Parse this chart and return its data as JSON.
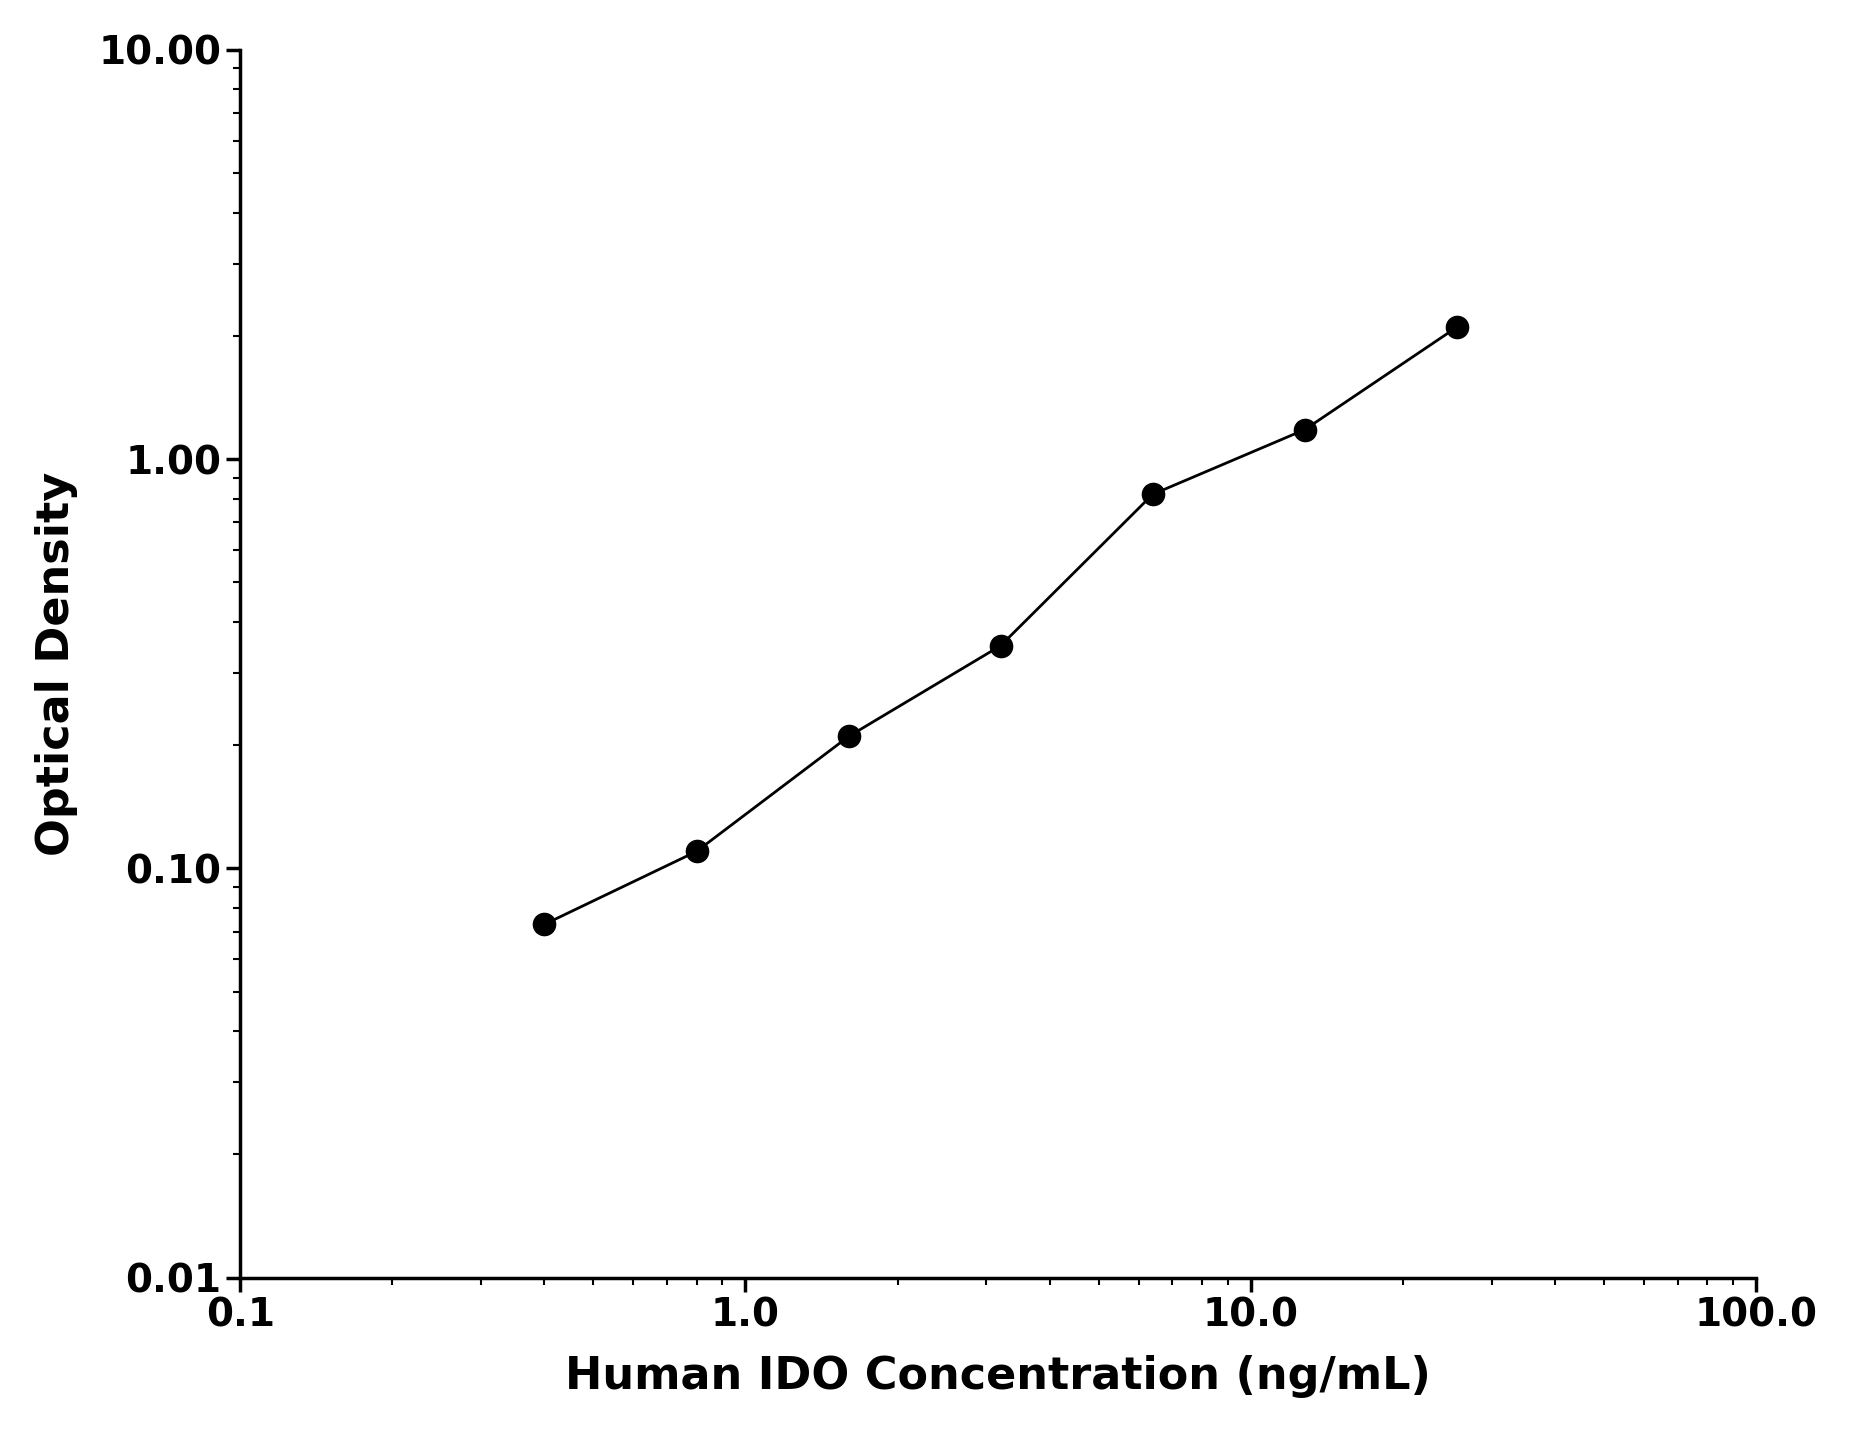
{
  "x": [
    0.4,
    0.8,
    1.6,
    3.2,
    6.4,
    12.8,
    25.6
  ],
  "y": [
    0.073,
    0.11,
    0.21,
    0.35,
    0.82,
    1.18,
    2.1
  ],
  "xlabel": "Human IDO Concentration (ng/mL)",
  "ylabel": "Optical Density",
  "xlim": [
    0.1,
    100
  ],
  "ylim": [
    0.01,
    10
  ],
  "marker_color": "#000000",
  "line_color": "#000000",
  "marker_size": 16,
  "line_width": 2.0,
  "xlabel_fontsize": 32,
  "ylabel_fontsize": 32,
  "tick_fontsize": 28,
  "background_color": "#ffffff"
}
